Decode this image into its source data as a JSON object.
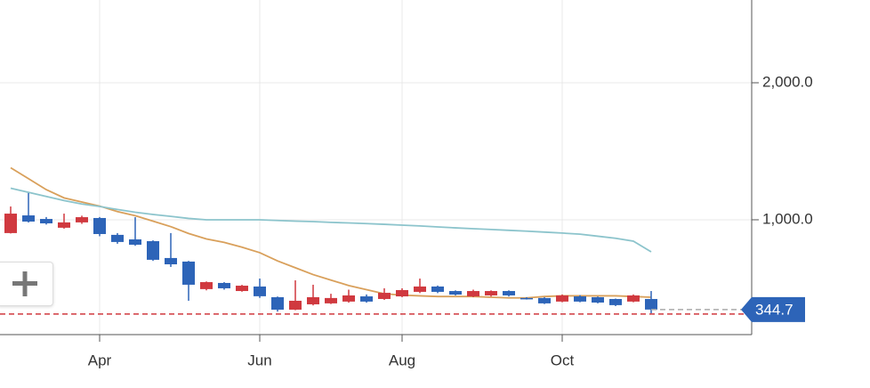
{
  "chart_data": {
    "type": "candlestick",
    "x": [
      0,
      1,
      2,
      3,
      4,
      5,
      6,
      7,
      8,
      9,
      10,
      11,
      12,
      13,
      14,
      15,
      16,
      17,
      18,
      19,
      20,
      21,
      22,
      23,
      24,
      25,
      26,
      27,
      28,
      29,
      30,
      31,
      32,
      33,
      34,
      35,
      36
    ],
    "xlim": [
      -0.6,
      41.65
    ],
    "xticks": [
      {
        "value": 5,
        "label": "Apr"
      },
      {
        "value": 14,
        "label": "Jun"
      },
      {
        "value": 22,
        "label": "Aug"
      },
      {
        "value": 31,
        "label": "Oct"
      }
    ],
    "ylim": [
      162,
      2604
    ],
    "yticks": [
      {
        "value": 1000,
        "label": "1,000.0"
      },
      {
        "value": 2000,
        "label": "2,000.0"
      }
    ],
    "grid": true,
    "up_color": "#d0393f",
    "down_color": "#2d64b8",
    "open": [
      903,
      1032,
      1006,
      942,
      981,
      1013,
      890,
      857,
      844,
      721,
      695,
      494,
      539,
      480,
      513,
      435,
      344,
      383,
      390,
      403,
      441,
      422,
      441,
      474,
      513,
      480,
      441,
      448,
      480,
      429,
      429,
      403,
      441,
      435,
      422,
      403,
      422
    ],
    "high": [
      1097,
      1195,
      1020,
      1045,
      1030,
      1020,
      903,
      1019,
      850,
      903,
      700,
      550,
      545,
      525,
      571,
      440,
      558,
      526,
      460,
      490,
      455,
      500,
      500,
      571,
      520,
      485,
      490,
      485,
      485,
      435,
      435,
      455,
      450,
      440,
      425,
      455,
      480
    ],
    "low": [
      900,
      980,
      965,
      935,
      970,
      880,
      825,
      810,
      700,
      656,
      409,
      485,
      490,
      475,
      430,
      330,
      340,
      375,
      385,
      395,
      395,
      415,
      435,
      465,
      465,
      448,
      435,
      440,
      440,
      418,
      385,
      398,
      398,
      390,
      370,
      398,
      318
    ],
    "close": [
      1045,
      987,
      974,
      981,
      1019,
      896,
      838,
      818,
      708,
      675,
      526,
      545,
      500,
      519,
      442,
      344,
      409,
      435,
      429,
      448,
      403,
      467,
      487,
      513,
      474,
      454,
      480,
      480,
      448,
      422,
      390,
      448,
      403,
      396,
      377,
      448,
      344.7
    ],
    "series": [
      {
        "color": "#d9a05b",
        "values": [
          1380,
          1300,
          1220,
          1160,
          1130,
          1100,
          1060,
          1030,
          990,
          950,
          900,
          860,
          835,
          800,
          760,
          700,
          650,
          600,
          560,
          520,
          490,
          460,
          450,
          445,
          440,
          440,
          440,
          435,
          430,
          430,
          440,
          445,
          445,
          445,
          445,
          440,
          435
        ]
      },
      {
        "color": "#8cc4cc",
        "values": [
          1230,
          1200,
          1170,
          1140,
          1115,
          1097,
          1075,
          1055,
          1039,
          1025,
          1010,
          1000,
          1000,
          1000,
          1000,
          995,
          990,
          987,
          981,
          977,
          972,
          967,
          961,
          955,
          948,
          941,
          935,
          929,
          923,
          917,
          910,
          903,
          895,
          880,
          865,
          844,
          766
        ]
      }
    ],
    "reference_line": {
      "value": 312,
      "color": "#d0393f"
    },
    "last_price": {
      "value": 344.7,
      "label": "344.7",
      "color": "#2d64b8"
    }
  }
}
